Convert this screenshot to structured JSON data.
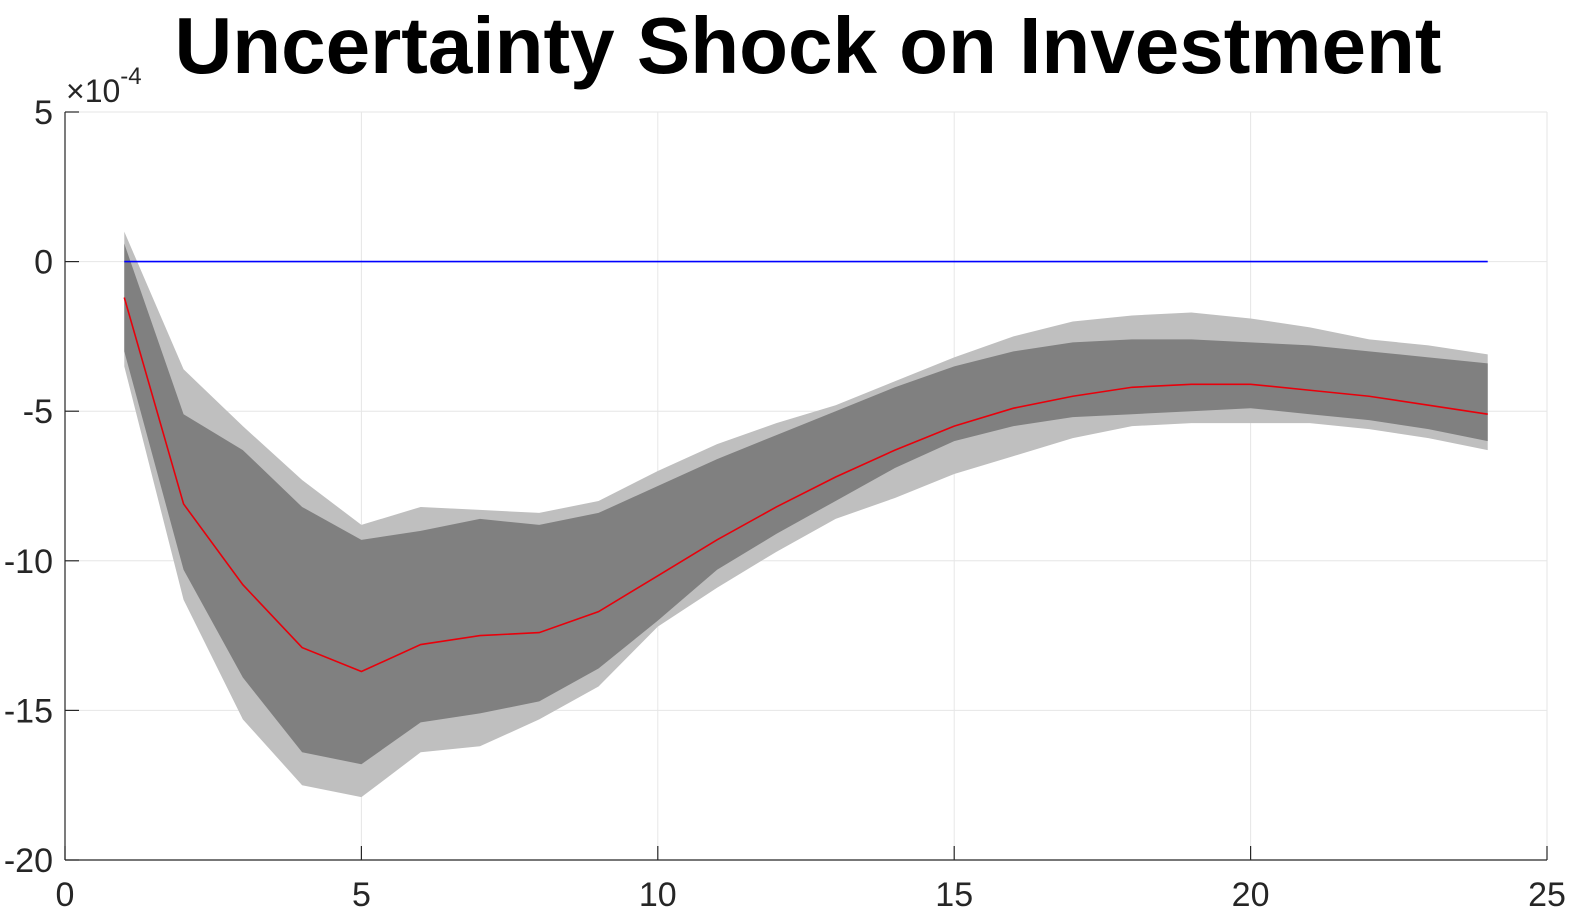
{
  "chart_data": {
    "type": "line",
    "title": "Uncertainty Shock on Investment",
    "xlabel": "",
    "ylabel": "",
    "y_exponent": {
      "prefix": "×10",
      "power": "-4"
    },
    "xlim": [
      0,
      25
    ],
    "ylim": [
      -20,
      5
    ],
    "x_ticks": [
      0,
      5,
      10,
      15,
      20,
      25
    ],
    "x_tick_labels": [
      "0",
      "5",
      "10",
      "15",
      "20",
      "25"
    ],
    "y_ticks": [
      5,
      0,
      -5,
      -10,
      -15,
      -20
    ],
    "y_tick_labels": [
      "5",
      "0",
      "-5",
      "-10",
      "-15",
      "-20"
    ],
    "grid": true,
    "x": [
      1,
      2,
      3,
      4,
      5,
      6,
      7,
      8,
      9,
      10,
      11,
      12,
      13,
      14,
      15,
      16,
      17,
      18,
      19,
      20,
      21,
      22,
      23,
      24
    ],
    "series": [
      {
        "role": "outer-band",
        "color": "#bfbfbf",
        "upper": [
          1.0,
          -3.6,
          -5.5,
          -7.3,
          -8.8,
          -8.2,
          -8.3,
          -8.4,
          -8.0,
          -7.0,
          -6.1,
          -5.4,
          -4.8,
          -4.0,
          -3.2,
          -2.5,
          -2.0,
          -1.8,
          -1.7,
          -1.9,
          -2.2,
          -2.6,
          -2.8,
          -3.1
        ],
        "lower": [
          -3.5,
          -11.3,
          -15.3,
          -17.5,
          -17.9,
          -16.4,
          -16.2,
          -15.3,
          -14.2,
          -12.2,
          -10.9,
          -9.7,
          -8.6,
          -7.9,
          -7.1,
          -6.5,
          -5.9,
          -5.5,
          -5.4,
          -5.4,
          -5.4,
          -5.6,
          -5.9,
          -6.3
        ]
      },
      {
        "role": "inner-band",
        "color": "#808080",
        "upper": [
          0.6,
          -5.1,
          -6.3,
          -8.2,
          -9.3,
          -9.0,
          -8.6,
          -8.8,
          -8.4,
          -7.5,
          -6.6,
          -5.8,
          -5.0,
          -4.2,
          -3.5,
          -3.0,
          -2.7,
          -2.6,
          -2.6,
          -2.7,
          -2.8,
          -3.0,
          -3.2,
          -3.4
        ],
        "lower": [
          -3.0,
          -10.3,
          -13.9,
          -16.4,
          -16.8,
          -15.4,
          -15.1,
          -14.7,
          -13.6,
          -12.0,
          -10.3,
          -9.1,
          -8.0,
          -6.9,
          -6.0,
          -5.5,
          -5.2,
          -5.1,
          -5.0,
          -4.9,
          -5.1,
          -5.3,
          -5.6,
          -6.0
        ]
      },
      {
        "role": "median",
        "color": "#e8000b",
        "values": [
          -1.2,
          -8.1,
          -10.8,
          -12.9,
          -13.7,
          -12.8,
          -12.5,
          -12.4,
          -11.7,
          -10.5,
          -9.3,
          -8.2,
          -7.2,
          -6.3,
          -5.5,
          -4.9,
          -4.5,
          -4.2,
          -4.1,
          -4.1,
          -4.3,
          -4.5,
          -4.8,
          -5.1
        ]
      },
      {
        "role": "zero-line",
        "color": "#0000ff",
        "values": [
          0,
          0,
          0,
          0,
          0,
          0,
          0,
          0,
          0,
          0,
          0,
          0,
          0,
          0,
          0,
          0,
          0,
          0,
          0,
          0,
          0,
          0,
          0,
          0
        ]
      }
    ],
    "colors": {
      "grid": "#e6e6e6",
      "axis": "#262626",
      "background": "#ffffff"
    }
  }
}
